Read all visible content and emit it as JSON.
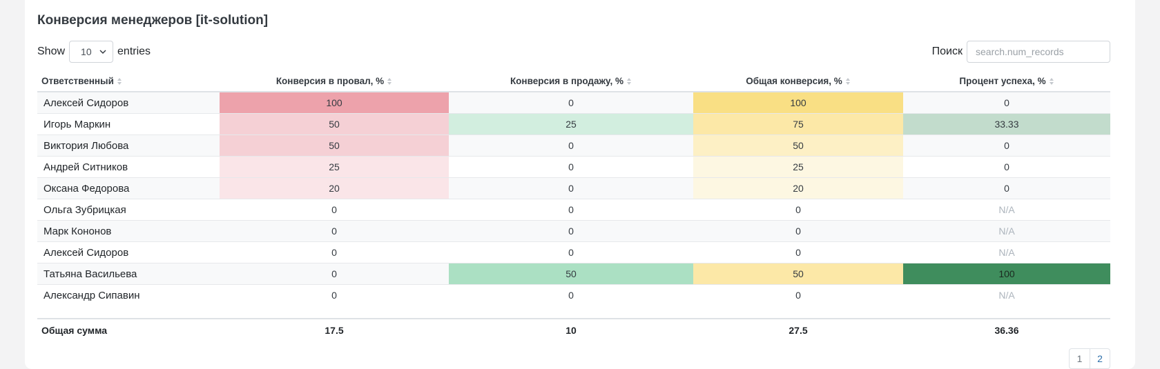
{
  "title": "Конверсия менеджеров [it-solution]",
  "length_control": {
    "show_label": "Show",
    "selected": "10",
    "entries_label": "entries"
  },
  "search": {
    "label": "Поиск",
    "placeholder": "search.num_records"
  },
  "columns": [
    "Ответственный",
    "Конверсия в провал, %",
    "Конверсия в продажу, %",
    "Общая конверсия, %",
    "Процент успеха, %"
  ],
  "rows": [
    {
      "name": "Алексей Сидоров",
      "fail": "100",
      "sale": "0",
      "total": "100",
      "success": "0"
    },
    {
      "name": "Игорь Маркин",
      "fail": "50",
      "sale": "25",
      "total": "75",
      "success": "33.33"
    },
    {
      "name": "Виктория Любова",
      "fail": "50",
      "sale": "0",
      "total": "50",
      "success": "0"
    },
    {
      "name": "Андрей Ситников",
      "fail": "25",
      "sale": "0",
      "total": "25",
      "success": "0"
    },
    {
      "name": "Оксана Федорова",
      "fail": "20",
      "sale": "0",
      "total": "20",
      "success": "0"
    },
    {
      "name": "Ольга Зубрицкая",
      "fail": "0",
      "sale": "0",
      "total": "0",
      "success": "N/A"
    },
    {
      "name": "Марк Кононов",
      "fail": "0",
      "sale": "0",
      "total": "0",
      "success": "N/A"
    },
    {
      "name": "Алексей Сидоров",
      "fail": "0",
      "sale": "0",
      "total": "0",
      "success": "N/A"
    },
    {
      "name": "Татьяна Васильева",
      "fail": "0",
      "sale": "50",
      "total": "50",
      "success": "100"
    },
    {
      "name": "Александр Сипавин",
      "fail": "0",
      "sale": "0",
      "total": "0",
      "success": "N/A"
    }
  ],
  "totals": {
    "name": "Общая сумма",
    "fail": "17.5",
    "sale": "10",
    "total": "27.5",
    "success": "36.36"
  },
  "pagination": [
    "1",
    "2"
  ],
  "colors": {
    "fail_scale": [
      "#eda2ab",
      "#f5d0d5",
      "#fae5e8"
    ],
    "total_scale": [
      "#f9df84",
      "#fce8a7",
      "#fdf0c5",
      "#fdf7e2"
    ],
    "sale_scale": [
      "#d2eedf",
      "#abe0c3"
    ],
    "success_scale": [
      "#c2dccc",
      "#3f8d5d"
    ],
    "na_text": "#adb5bd"
  }
}
